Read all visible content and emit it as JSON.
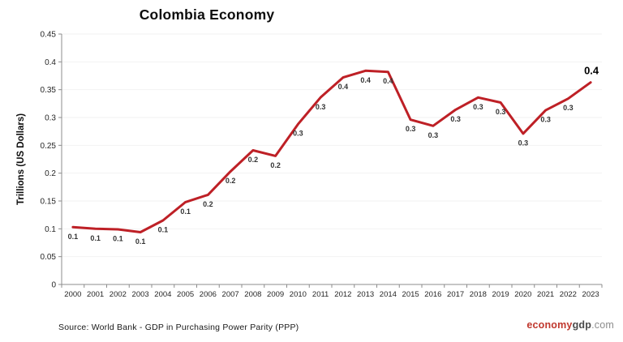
{
  "chart_data": {
    "type": "line",
    "title": "Colombia Economy",
    "ylabel": "Trillions (US Dollars)",
    "xlabel": "",
    "x": [
      "2000",
      "2001",
      "2002",
      "2003",
      "2004",
      "2005",
      "2006",
      "2007",
      "2008",
      "2009",
      "2010",
      "2011",
      "2012",
      "2013",
      "2014",
      "2015",
      "2016",
      "2017",
      "2018",
      "2019",
      "2020",
      "2021",
      "2022",
      "2023"
    ],
    "values": [
      0.103,
      0.1,
      0.099,
      0.094,
      0.115,
      0.148,
      0.161,
      0.203,
      0.241,
      0.231,
      0.288,
      0.336,
      0.372,
      0.384,
      0.382,
      0.296,
      0.285,
      0.314,
      0.336,
      0.327,
      0.271,
      0.313,
      0.334,
      0.363
    ],
    "point_labels": [
      "0.1",
      "0.1",
      "0.1",
      "0.1",
      "0.1",
      "0.1",
      "0.2",
      "0.2",
      "0.2",
      "0.2",
      "0.3",
      "0.3",
      "0.4",
      "0.4",
      "0.4",
      "0.3",
      "0.3",
      "0.3",
      "0.3",
      "0.3",
      "0.3",
      "0.3",
      "0.3",
      "0.4"
    ],
    "ytick_labels": [
      "0",
      "0.05",
      "0.1",
      "0.15",
      "0.2",
      "0.25",
      "0.3",
      "0.35",
      "0.4",
      "0.45"
    ],
    "yticks": [
      0,
      0.05,
      0.1,
      0.15,
      0.2,
      0.25,
      0.3,
      0.35,
      0.4,
      0.45
    ],
    "ylim": [
      0,
      0.45
    ],
    "grid": "horizontal",
    "legend": "none",
    "line_color": "#be2026",
    "grid_color": "#f2f2f2",
    "axis_color": "#8c8c8c",
    "tick_label_color": "#262626",
    "data_label_color": "#333333",
    "final_label_color": "#000000"
  },
  "footer": {
    "source": "Source: World Bank -  GDP in Purchasing Power Parity (PPP)",
    "logo": {
      "economy": "economy",
      "gdp": "gdp",
      "com": ".com"
    }
  }
}
